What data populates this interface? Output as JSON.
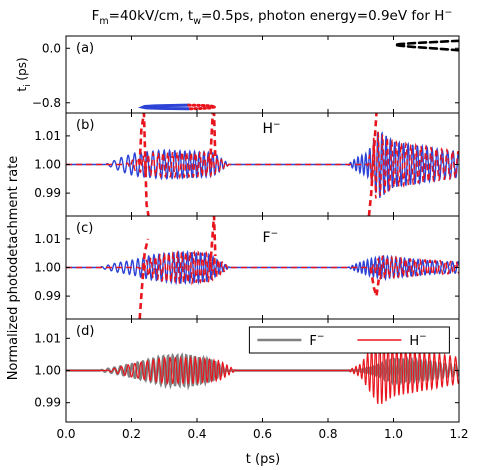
{
  "chart_data": {
    "type": "line",
    "title": "F_m=40kV/cm, t_w=0.5ps, photon energy=0.9eV for H⁻",
    "title_parts": {
      "a": "F",
      "a_sub": "m",
      "b": "=40kV/cm, t",
      "b_sub": "w",
      "c": "=0.5ps, photon energy=0.9eV for H",
      "c_sup": "−"
    },
    "xlabel": "t (ps)",
    "ylabel": "Normalized photodetachment rate",
    "xlim": [
      0.0,
      1.2
    ],
    "xticks": [
      "0.0",
      "0.2",
      "0.4",
      "0.6",
      "0.8",
      "1.0",
      "1.2"
    ],
    "grid": false,
    "panels": [
      {
        "label": "(a)",
        "ylabel": "t_i (ps)",
        "ylim": [
          -0.95,
          0.18
        ],
        "yticks": [
          {
            "v": 0.0,
            "t": "0.0"
          },
          {
            "v": -0.8,
            "t": "−0.8"
          }
        ],
        "series": [
          {
            "style": "blue-solid",
            "color": "#2c43d6",
            "points": [
              [
                0.375,
                -0.835
              ],
              [
                0.32,
                -0.84
              ],
              [
                0.27,
                -0.845
              ],
              [
                0.24,
                -0.855
              ],
              [
                0.235,
                -0.865
              ],
              [
                0.245,
                -0.875
              ],
              [
                0.29,
                -0.882
              ],
              [
                0.34,
                -0.886
              ],
              [
                0.375,
                -0.888
              ]
            ]
          },
          {
            "style": "red-dotted",
            "color": "#e8151e",
            "points": [
              [
                0.375,
                -0.835
              ],
              [
                0.41,
                -0.838
              ],
              [
                0.44,
                -0.845
              ],
              [
                0.455,
                -0.86
              ],
              [
                0.44,
                -0.876
              ],
              [
                0.41,
                -0.884
              ],
              [
                0.375,
                -0.888
              ]
            ]
          },
          {
            "style": "black-dashed",
            "color": "#000000",
            "points": [
              [
                1.2,
                0.11
              ],
              [
                1.12,
                0.09
              ],
              [
                1.06,
                0.075
              ],
              [
                1.02,
                0.062
              ],
              [
                1.005,
                0.05
              ],
              [
                1.02,
                0.037
              ],
              [
                1.06,
                0.02
              ],
              [
                1.12,
                0.0
              ],
              [
                1.2,
                -0.03
              ]
            ]
          }
        ]
      },
      {
        "label": "(b)",
        "annotation": {
          "t": "H",
          "sup": "−"
        },
        "ylim": [
          0.982,
          1.018
        ],
        "yticks": [
          {
            "v": 1.01,
            "t": "1.01"
          },
          {
            "v": 1.0,
            "t": "1.00"
          },
          {
            "v": 0.99,
            "t": "0.99"
          }
        ],
        "bursts": [
          {
            "name": "blue-solid",
            "color": "#2c43d6",
            "dash": "",
            "env": [
              [
                0.12,
                0.0
              ],
              [
                0.17,
                0.0025
              ],
              [
                0.21,
                0.004
              ],
              [
                0.3,
                0.005
              ],
              [
                0.4,
                0.0045
              ],
              [
                0.45,
                0.004
              ],
              [
                0.5,
                0.0
              ],
              [
                0.86,
                0.0
              ],
              [
                0.89,
                0.0025
              ],
              [
                0.92,
                0.004
              ],
              [
                0.955,
                0.012
              ],
              [
                1.0,
                0.008
              ],
              [
                1.08,
                0.0065
              ],
              [
                1.15,
                0.005
              ],
              [
                1.2,
                0.0045
              ]
            ],
            "freq": [
              [
                0.12,
                42
              ],
              [
                0.5,
                80
              ],
              [
                0.86,
                88
              ],
              [
                1.2,
                58
              ]
            ]
          },
          {
            "name": "red-dashed",
            "color": "#e8151e",
            "dash": "6,4",
            "env": [
              [
                0.18,
                0.0
              ],
              [
                0.21,
                0.002
              ],
              [
                0.26,
                0.004
              ],
              [
                0.35,
                0.0045
              ],
              [
                0.44,
                0.004
              ],
              [
                0.5,
                0.0
              ],
              [
                0.92,
                0.0
              ],
              [
                0.945,
                0.012
              ],
              [
                1.0,
                0.008
              ],
              [
                1.08,
                0.0065
              ],
              [
                1.2,
                0.0045
              ]
            ],
            "freq": [
              [
                0.18,
                60
              ],
              [
                0.5,
                80
              ],
              [
                0.92,
                75
              ],
              [
                1.2,
                58
              ]
            ]
          }
        ],
        "spikes": [
          {
            "color": "#e8151e",
            "points": [
              [
                0.225,
                1.0
              ],
              [
                0.23,
                1.012
              ],
              [
                0.238,
                1.018
              ],
              [
                0.246,
                0.986
              ],
              [
                0.252,
                0.982
              ]
            ]
          },
          {
            "color": "#e8151e",
            "points": [
              [
                0.44,
                1.0
              ],
              [
                0.448,
                1.018
              ],
              [
                0.452,
                1.018
              ],
              [
                0.456,
                1.002
              ]
            ]
          },
          {
            "color": "#e8151e",
            "points": [
              [
                0.925,
                0.982
              ],
              [
                0.932,
                0.99
              ],
              [
                0.94,
                1.004
              ],
              [
                0.948,
                1.018
              ]
            ]
          }
        ]
      },
      {
        "label": "(c)",
        "annotation": {
          "t": "F",
          "sup": "−"
        },
        "ylim": [
          0.982,
          1.018
        ],
        "yticks": [
          {
            "v": 1.01,
            "t": "1.01"
          },
          {
            "v": 1.0,
            "t": "1.00"
          },
          {
            "v": 0.99,
            "t": "0.99"
          }
        ],
        "bursts": [
          {
            "name": "blue-solid",
            "color": "#2c43d6",
            "dash": "",
            "env": [
              [
                0.1,
                0.0
              ],
              [
                0.15,
                0.0015
              ],
              [
                0.2,
                0.0025
              ],
              [
                0.27,
                0.0045
              ],
              [
                0.35,
                0.0055
              ],
              [
                0.43,
                0.005
              ],
              [
                0.5,
                0.0
              ],
              [
                0.86,
                0.0
              ],
              [
                0.89,
                0.0015
              ],
              [
                0.93,
                0.003
              ],
              [
                0.97,
                0.004
              ],
              [
                1.05,
                0.003
              ],
              [
                1.15,
                0.002
              ],
              [
                1.2,
                0.002
              ]
            ],
            "freq": [
              [
                0.1,
                48
              ],
              [
                0.5,
                85
              ],
              [
                0.86,
                90
              ],
              [
                1.2,
                60
              ]
            ]
          },
          {
            "name": "red-dashed",
            "color": "#e8151e",
            "dash": "6,4",
            "env": [
              [
                0.22,
                0.0
              ],
              [
                0.25,
                0.003
              ],
              [
                0.3,
                0.005
              ],
              [
                0.38,
                0.0055
              ],
              [
                0.44,
                0.005
              ],
              [
                0.5,
                0.0
              ],
              [
                0.93,
                0.0
              ],
              [
                0.96,
                0.004
              ],
              [
                1.05,
                0.003
              ],
              [
                1.2,
                0.002
              ]
            ],
            "freq": [
              [
                0.22,
                70
              ],
              [
                0.5,
                85
              ],
              [
                0.93,
                75
              ],
              [
                1.2,
                60
              ]
            ]
          }
        ],
        "spikes": [
          {
            "color": "#e8151e",
            "points": [
              [
                0.225,
                0.982
              ],
              [
                0.23,
                0.99
              ],
              [
                0.24,
                1.005
              ],
              [
                0.25,
                1.01
              ]
            ]
          },
          {
            "color": "#e8151e",
            "points": [
              [
                0.44,
                1.0
              ],
              [
                0.448,
                1.012
              ],
              [
                0.452,
                1.018
              ],
              [
                0.456,
                1.004
              ]
            ]
          },
          {
            "color": "#e8151e",
            "points": [
              [
                0.93,
                1.0
              ],
              [
                0.94,
                0.993
              ],
              [
                0.948,
                0.99
              ],
              [
                0.96,
                1.0
              ]
            ]
          }
        ]
      },
      {
        "label": "(d)",
        "ylim": [
          0.984,
          1.016
        ],
        "yticks": [
          {
            "v": 1.01,
            "t": "1.01"
          },
          {
            "v": 1.0,
            "t": "1.00"
          },
          {
            "v": 0.99,
            "t": "0.99"
          }
        ],
        "legend": [
          {
            "name": "F",
            "sup": "−",
            "color": "#808080"
          },
          {
            "name": "H",
            "sup": "−",
            "color": "#e8151e"
          }
        ],
        "bursts": [
          {
            "name": "F-",
            "color": "#808080",
            "dash": "",
            "width": 2.4,
            "env": [
              [
                0.1,
                0.0
              ],
              [
                0.2,
                0.002
              ],
              [
                0.3,
                0.0045
              ],
              [
                0.38,
                0.0048
              ],
              [
                0.45,
                0.003
              ],
              [
                0.5,
                0.0
              ],
              [
                0.88,
                0.0
              ],
              [
                0.93,
                0.001
              ],
              [
                1.0,
                0.0035
              ],
              [
                1.1,
                0.003
              ],
              [
                1.2,
                0.0015
              ]
            ],
            "freq": [
              [
                0.1,
                48
              ],
              [
                0.5,
                88
              ],
              [
                0.88,
                90
              ],
              [
                1.2,
                60
              ]
            ]
          },
          {
            "name": "H-",
            "color": "#e8151e",
            "dash": "",
            "width": 1.2,
            "env": [
              [
                0.12,
                0.0
              ],
              [
                0.2,
                0.002
              ],
              [
                0.3,
                0.004
              ],
              [
                0.4,
                0.004
              ],
              [
                0.47,
                0.003
              ],
              [
                0.52,
                0.0
              ],
              [
                0.86,
                0.0
              ],
              [
                0.9,
                0.002
              ],
              [
                0.955,
                0.011
              ],
              [
                1.0,
                0.008
              ],
              [
                1.08,
                0.0065
              ],
              [
                1.2,
                0.004
              ]
            ],
            "freq": [
              [
                0.12,
                42
              ],
              [
                0.52,
                80
              ],
              [
                0.86,
                88
              ],
              [
                1.2,
                58
              ]
            ]
          }
        ]
      }
    ]
  }
}
